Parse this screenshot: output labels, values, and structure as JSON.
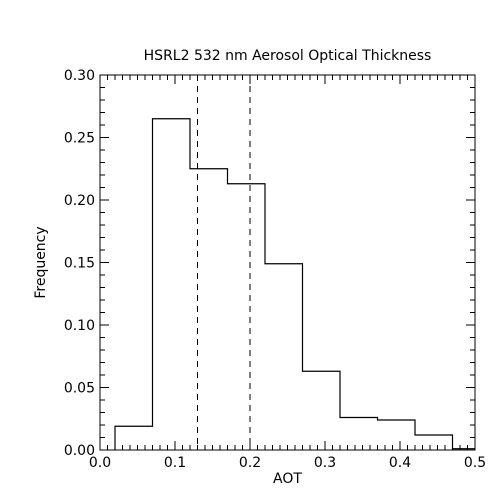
{
  "chart_data": {
    "type": "bar",
    "title": "HSRL2 532 nm Aerosol Optical Thickness",
    "xlabel": "AOT",
    "ylabel": "Frequency",
    "xlim": [
      0.0,
      0.5
    ],
    "ylim": [
      0.0,
      0.3
    ],
    "xticks": [
      "0.0",
      "0.1",
      "0.2",
      "0.3",
      "0.4",
      "0.5"
    ],
    "yticks": [
      "0.00",
      "0.05",
      "0.10",
      "0.15",
      "0.20",
      "0.25",
      "0.30"
    ],
    "bins": [
      {
        "x0": 0.02,
        "x1": 0.07,
        "value": 0.019
      },
      {
        "x0": 0.07,
        "x1": 0.12,
        "value": 0.265
      },
      {
        "x0": 0.12,
        "x1": 0.17,
        "value": 0.225
      },
      {
        "x0": 0.17,
        "x1": 0.22,
        "value": 0.213
      },
      {
        "x0": 0.22,
        "x1": 0.27,
        "value": 0.149
      },
      {
        "x0": 0.27,
        "x1": 0.32,
        "value": 0.063
      },
      {
        "x0": 0.32,
        "x1": 0.37,
        "value": 0.026
      },
      {
        "x0": 0.37,
        "x1": 0.42,
        "value": 0.024
      },
      {
        "x0": 0.42,
        "x1": 0.47,
        "value": 0.012
      },
      {
        "x0": 0.47,
        "x1": 0.5,
        "value": 0.001
      }
    ],
    "reference_lines": [
      0.13,
      0.2
    ],
    "grid": false,
    "style": "step histogram outline, dashed vertical reference lines, minor ticks on all sides"
  }
}
